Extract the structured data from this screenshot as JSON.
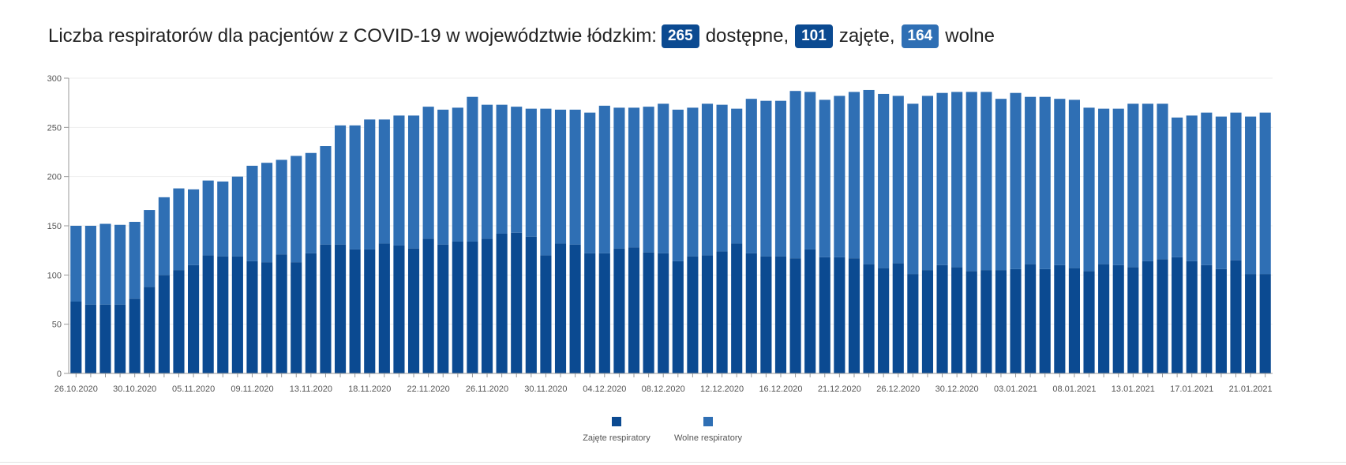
{
  "headline": {
    "prefix": "Liczba respiratorów dla pacjentów z COVID-19 w województwie łódzkim:",
    "available_value": "265",
    "available_label": "dostępne,",
    "occupied_value": "101",
    "occupied_label": "zajęte,",
    "free_value": "164",
    "free_label": "wolne"
  },
  "colors": {
    "occupied": "#0b4a91",
    "free": "#2f6fb4",
    "text": "#222222",
    "axis": "#999999"
  },
  "chart_data": {
    "type": "bar",
    "stacked": true,
    "title": "",
    "xlabel": "",
    "ylabel": "",
    "ylim": [
      0,
      300
    ],
    "yticks": [
      0,
      50,
      100,
      150,
      200,
      250,
      300
    ],
    "x_tick_labels": [
      "26.10.2020",
      "30.10.2020",
      "05.11.2020",
      "09.11.2020",
      "13.11.2020",
      "18.11.2020",
      "22.11.2020",
      "26.11.2020",
      "30.11.2020",
      "04.12.2020",
      "08.12.2020",
      "12.12.2020",
      "16.12.2020",
      "21.12.2020",
      "26.12.2020",
      "30.12.2020",
      "03.01.2021",
      "08.01.2021",
      "13.01.2021",
      "17.01.2021",
      "21.01.2021"
    ],
    "legend_position": "bottom",
    "series": [
      {
        "name": "Zajęte respiratory",
        "color": "#0b4a91",
        "values": [
          73,
          70,
          70,
          70,
          76,
          88,
          100,
          105,
          110,
          120,
          119,
          119,
          114,
          113,
          121,
          113,
          122,
          131,
          131,
          126,
          126,
          132,
          130,
          127,
          137,
          131,
          134,
          134,
          137,
          142,
          143,
          139,
          120,
          132,
          131,
          122,
          122,
          127,
          128,
          123,
          122,
          114,
          119,
          120,
          124,
          132,
          122,
          119,
          119,
          117,
          126,
          118,
          118,
          117,
          111,
          107,
          112,
          101,
          105,
          110,
          108,
          104,
          105,
          105,
          106,
          111,
          106,
          110,
          107,
          104,
          111,
          110,
          108,
          114,
          116,
          118,
          114,
          110,
          106,
          115,
          101,
          101
        ]
      },
      {
        "name": "Wolne respiratory",
        "color": "#2f6fb4",
        "values": [
          77,
          80,
          82,
          81,
          78,
          78,
          79,
          83,
          77,
          76,
          76,
          81,
          97,
          101,
          96,
          108,
          102,
          100,
          121,
          126,
          132,
          126,
          132,
          135,
          134,
          137,
          136,
          147,
          136,
          131,
          128,
          130,
          149,
          136,
          137,
          143,
          150,
          143,
          142,
          148,
          152,
          154,
          151,
          154,
          149,
          137,
          157,
          158,
          158,
          170,
          160,
          160,
          164,
          169,
          177,
          177,
          170,
          173,
          177,
          175,
          178,
          182,
          181,
          174,
          179,
          170,
          175,
          169,
          171,
          166,
          158,
          159,
          166,
          160,
          158,
          142,
          148,
          155,
          155,
          150,
          160,
          164
        ]
      }
    ]
  }
}
